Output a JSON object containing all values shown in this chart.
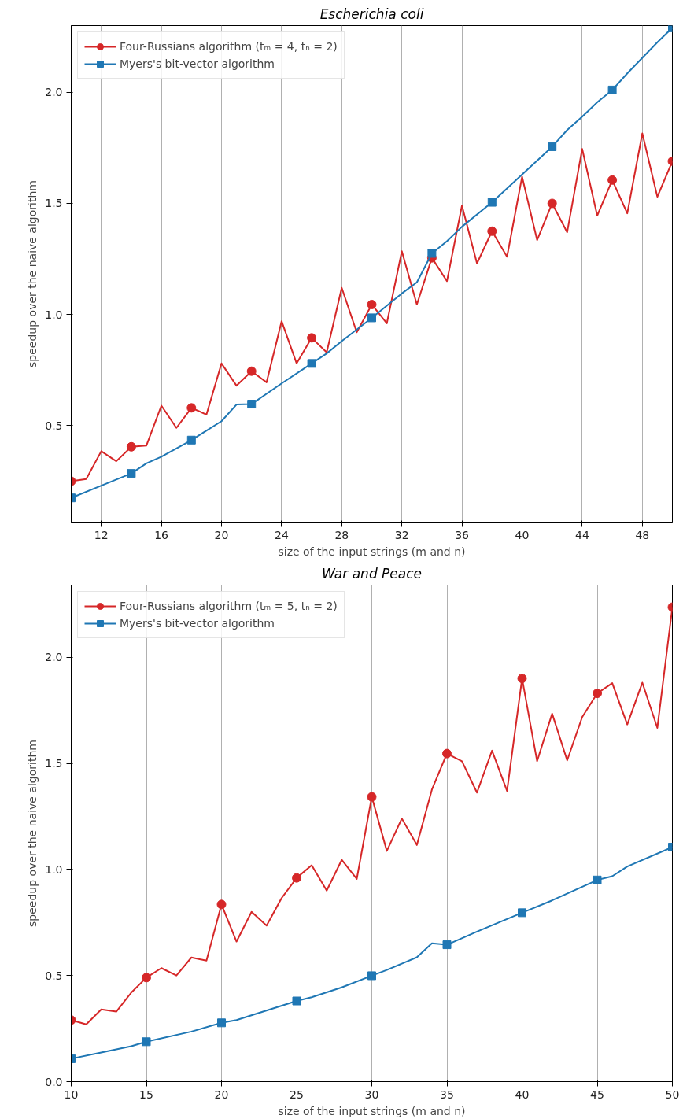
{
  "chart_data": [
    {
      "type": "line",
      "title": "Escherichia coli",
      "xlabel": "size of the input strings (m and n)",
      "ylabel": "speedup over the naive algorithm",
      "xlim": [
        10,
        50
      ],
      "ylim": [
        0.066,
        2.3
      ],
      "xticks": [
        12,
        16,
        20,
        24,
        28,
        32,
        36,
        40,
        44,
        48
      ],
      "yticks": [
        {
          "value": 0.5,
          "label": "0.5"
        },
        {
          "value": 1.0,
          "label": "1.0"
        },
        {
          "value": 1.5,
          "label": "1.5"
        },
        {
          "value": 2.0,
          "label": "2.0"
        }
      ],
      "grid": "x",
      "legend": "top left",
      "x": [
        10,
        11,
        12,
        13,
        14,
        15,
        16,
        17,
        18,
        19,
        20,
        21,
        22,
        23,
        24,
        25,
        26,
        27,
        28,
        29,
        30,
        31,
        32,
        33,
        34,
        35,
        36,
        37,
        38,
        39,
        40,
        41,
        42,
        43,
        44,
        45,
        46,
        47,
        48,
        49,
        50
      ],
      "series": [
        {
          "name": "Four-Russians algorithm (tₘ = 4, tₙ = 2)",
          "color": "#d62728",
          "values": [
            0.25,
            0.26,
            0.385,
            0.34,
            0.405,
            0.41,
            0.59,
            0.49,
            0.58,
            0.55,
            0.78,
            0.68,
            0.745,
            0.695,
            0.97,
            0.78,
            0.895,
            0.83,
            1.12,
            0.92,
            1.045,
            0.96,
            1.285,
            1.045,
            1.255,
            1.15,
            1.49,
            1.23,
            1.375,
            1.26,
            1.62,
            1.335,
            1.5,
            1.37,
            1.745,
            1.445,
            1.605,
            1.455,
            1.815,
            1.53,
            1.69
          ]
        },
        {
          "name": "Myers's bit-vector algorithm",
          "color": "#1f77b4",
          "x": [
            10,
            12,
            14,
            15,
            16,
            18,
            20,
            21,
            22,
            24,
            26,
            27,
            28,
            30,
            32,
            33,
            34,
            35,
            36,
            38,
            40,
            42,
            43,
            44,
            45,
            46,
            47,
            48,
            49,
            50
          ],
          "values": [
            0.175,
            0.23,
            0.285,
            0.33,
            0.36,
            0.435,
            0.52,
            0.595,
            0.597,
            0.69,
            0.78,
            0.825,
            0.88,
            0.985,
            1.095,
            1.145,
            1.275,
            1.33,
            1.395,
            1.505,
            1.63,
            1.755,
            1.83,
            1.89,
            1.955,
            2.01,
            2.085,
            2.155,
            2.225,
            2.29
          ]
        }
      ]
    },
    {
      "type": "line",
      "title": "War and Peace",
      "xlabel": "size of the input strings (m and n)",
      "ylabel": "speedup over the naive algorithm",
      "xlim": [
        10,
        50
      ],
      "ylim": [
        0,
        2.34
      ],
      "xticks": [
        10,
        15,
        20,
        25,
        30,
        35,
        40,
        45,
        50
      ],
      "yticks": [
        {
          "value": 0,
          "label": "0.0"
        },
        {
          "value": 0.5,
          "label": "0.5"
        },
        {
          "value": 1.0,
          "label": "1.0"
        },
        {
          "value": 1.5,
          "label": "1.5"
        },
        {
          "value": 2.0,
          "label": "2.0"
        }
      ],
      "grid": "x",
      "legend": "top left",
      "x": [
        10,
        11,
        12,
        13,
        14,
        15,
        16,
        17,
        18,
        19,
        20,
        21,
        22,
        23,
        24,
        25,
        26,
        27,
        28,
        29,
        30,
        31,
        32,
        33,
        34,
        35,
        36,
        37,
        38,
        39,
        40,
        41,
        42,
        43,
        44,
        45,
        46,
        47,
        48,
        49,
        50
      ],
      "series": [
        {
          "name": "Four-Russians algorithm (tₘ = 5, tₙ = 2)",
          "color": "#d62728",
          "values": [
            0.29,
            0.27,
            0.34,
            0.33,
            0.42,
            0.49,
            0.535,
            0.5,
            0.585,
            0.57,
            0.835,
            0.66,
            0.8,
            0.735,
            0.865,
            0.96,
            1.02,
            0.9,
            1.045,
            0.955,
            1.342,
            1.087,
            1.24,
            1.115,
            1.376,
            1.546,
            1.51,
            1.362,
            1.56,
            1.37,
            1.9,
            1.51,
            1.734,
            1.514,
            1.718,
            1.83,
            1.878,
            1.683,
            1.88,
            1.667,
            2.236
          ]
        },
        {
          "name": "Myers's bit-vector algorithm",
          "color": "#1f77b4",
          "x": [
            10,
            12,
            14,
            15,
            18,
            20,
            21,
            25,
            26,
            28,
            30,
            31,
            33,
            34,
            35,
            37,
            40,
            42,
            45,
            46,
            47,
            50
          ],
          "values": [
            0.108,
            0.137,
            0.167,
            0.188,
            0.236,
            0.277,
            0.29,
            0.38,
            0.398,
            0.444,
            0.499,
            0.526,
            0.586,
            0.652,
            0.645,
            0.707,
            0.796,
            0.854,
            0.95,
            0.968,
            1.014,
            1.105
          ]
        }
      ]
    }
  ]
}
